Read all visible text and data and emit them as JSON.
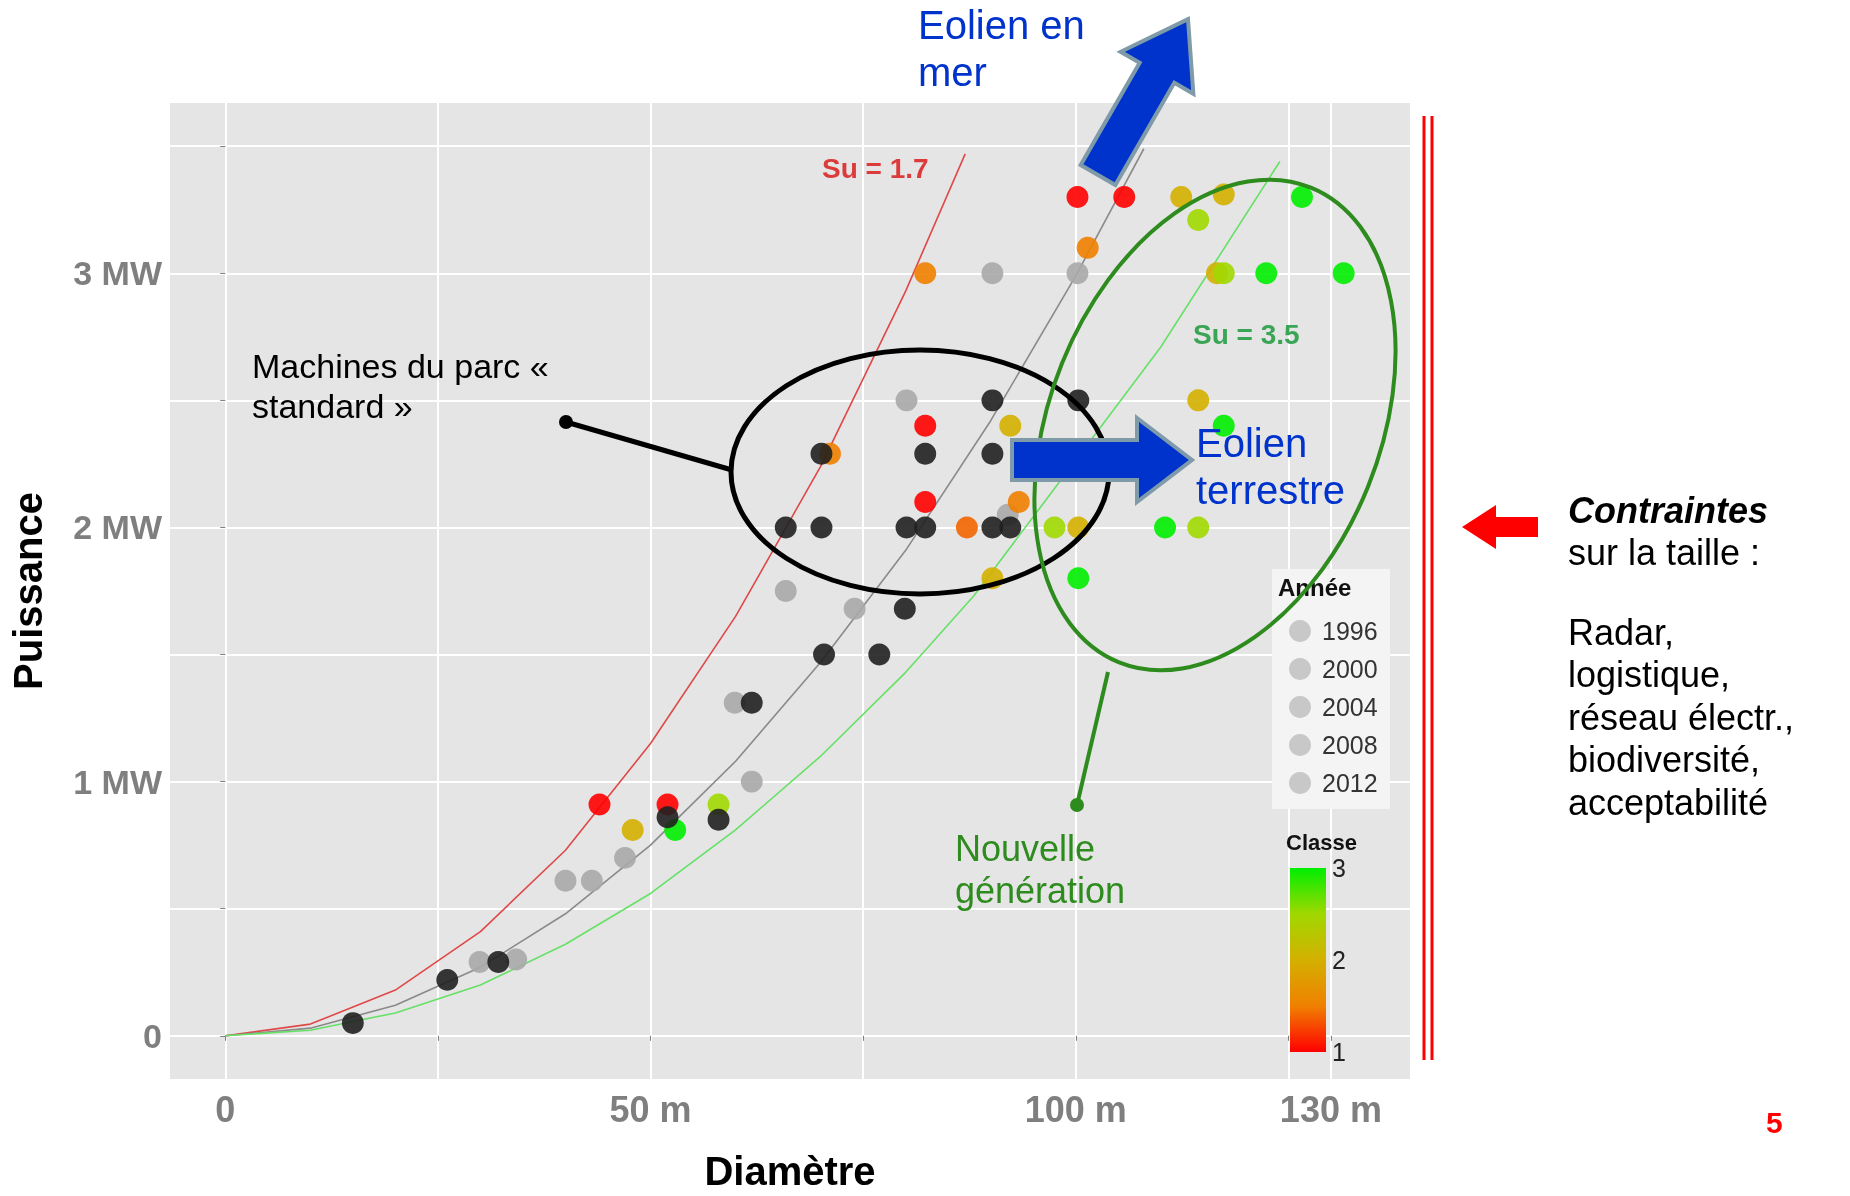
{
  "chart_data": {
    "type": "bubble",
    "xlabel": "Diamètre",
    "ylabel": "Puissance",
    "legend_title": "Année",
    "size_legend": [
      1996,
      2000,
      2004,
      2008,
      2012
    ],
    "xlim": [
      -6.5,
      139.3
    ],
    "ylim": [
      -0.17,
      3.67
    ],
    "xticks": [
      0,
      {
        "value": 25,
        "label": null
      },
      {
        "value": 50,
        "label": "50 m"
      },
      {
        "value": 75,
        "label": null
      },
      {
        "value": 100,
        "label": "100 m"
      },
      {
        "value": 125,
        "label": null
      },
      {
        "value": 130,
        "label": "130 m"
      }
    ],
    "yticks": [
      0,
      {
        "value": 0.5,
        "label": null
      },
      {
        "value": 1,
        "label": "1 MW"
      },
      {
        "value": 1.5,
        "label": null
      },
      {
        "value": 2,
        "label": "2 MW"
      },
      {
        "value": 2.5,
        "label": null
      },
      {
        "value": 3,
        "label": "3 MW"
      },
      {
        "value": 3.5,
        "label": null
      }
    ],
    "grid": true,
    "annotations": [
      "Eolien en mer",
      "Machines du parc « standard »",
      "Eolien terrestre",
      "Nouvelle génération",
      "Contraintes sur la taille :",
      "Radar, logistique, réseau électr., biodiversité, acceptabilité",
      "5",
      "Su = 1.7",
      "Su = 3.5",
      "Classe",
      "3",
      "2",
      "1"
    ],
    "series": [
      {
        "type": "line",
        "color": "#e04848",
        "x": [
          0,
          10,
          20,
          30,
          40,
          50,
          60,
          70,
          80,
          87
        ],
        "values": [
          0,
          0.046,
          0.18,
          0.41,
          0.73,
          1.15,
          1.65,
          2.24,
          2.93,
          3.47
        ]
      },
      {
        "type": "line",
        "color": "#8a8a8a",
        "x": [
          0,
          10,
          20,
          30,
          40,
          50,
          60,
          70,
          80,
          90,
          100,
          108
        ],
        "values": [
          0,
          0.03,
          0.12,
          0.27,
          0.48,
          0.75,
          1.08,
          1.47,
          1.91,
          2.42,
          2.99,
          3.49
        ]
      },
      {
        "type": "line",
        "color": "#66e066",
        "x": [
          0,
          10,
          20,
          30,
          40,
          50,
          60,
          70,
          80,
          88,
          110,
          124
        ],
        "values": [
          0,
          0.022,
          0.09,
          0.2,
          0.36,
          0.56,
          0.81,
          1.1,
          1.43,
          1.73,
          2.71,
          3.44
        ]
      },
      {
        "color": "#a8a8a8",
        "x": [
          90.2,
          100.2,
          80.1,
          92.0,
          65.9,
          74.0,
          59.9,
          61.9,
          47.0,
          40.0,
          43.1,
          29.9,
          34.2
        ],
        "values": [
          3.0,
          3.0,
          2.5,
          2.05,
          1.75,
          1.68,
          1.31,
          1.0,
          0.7,
          0.61,
          0.61,
          0.29,
          0.3
        ],
        "sizes": [
          2004,
          2004,
          2004,
          2004,
          2004,
          2004,
          2004,
          2004,
          2000,
          2000,
          1996,
          2004,
          2004
        ]
      },
      {
        "x": [
          100.2,
          105.7,
          112.4,
          117.4,
          114.4,
          126.6,
          101.4,
          82.3,
          116.6,
          117.4,
          122.4,
          131.5,
          114.4,
          82.3,
          92.3,
          117.4,
          71.1,
          82.3,
          93.3,
          87.2,
          97.5,
          100.3,
          110.5,
          114.4,
          90.2,
          100.3,
          44.0,
          52.0,
          58.0,
          47.9,
          52.9
        ],
        "values": [
          3.3,
          3.3,
          3.3,
          3.31,
          3.21,
          3.3,
          3.1,
          3.0,
          3.0,
          3.0,
          3.0,
          3.0,
          2.5,
          2.4,
          2.4,
          2.4,
          2.29,
          2.1,
          2.1,
          2.0,
          2.0,
          2.0,
          2.0,
          2.0,
          1.8,
          1.8,
          0.91,
          0.91,
          0.91,
          0.81,
          0.81
        ],
        "colors": [
          "#ff0000",
          "#ff0000",
          "#d4b000",
          "#d4b000",
          "#a0d800",
          "#00ee00",
          "#f08000",
          "#f08000",
          "#d4b000",
          "#a0d800",
          "#00ee00",
          "#00ee00",
          "#d4b000",
          "#ff0000",
          "#d4b000",
          "#00ee00",
          "#f08000",
          "#ff0000",
          "#f08000",
          "#f36600",
          "#a0d800",
          "#d4b000",
          "#00ee00",
          "#a0d800",
          "#d4b000",
          "#00ee00",
          "#ff0000",
          "#ff0000",
          "#a0d800",
          "#d4b000",
          "#00ee00"
        ],
        "sizes": [
          2012,
          2012,
          2012,
          2012,
          2012,
          2012,
          2012,
          2012,
          2012,
          2012,
          2012,
          2012,
          2012,
          2012,
          2012,
          2012,
          2012,
          2012,
          2012,
          2012,
          2012,
          2012,
          2012,
          2012,
          2012,
          2012,
          2012,
          2012,
          2012,
          2012,
          2012
        ]
      },
      {
        "color": "#202020",
        "x": [
          65.9,
          70.1,
          82.3,
          90.2,
          90.2,
          100.3,
          70.1,
          80.1,
          82.3,
          90.2,
          92.3,
          79.9,
          70.4,
          76.9,
          61.9,
          58.0,
          52.0,
          32.1,
          26.1,
          15.0
        ],
        "values": [
          2.0,
          2.29,
          2.29,
          2.29,
          2.5,
          2.5,
          2.0,
          2.0,
          2.0,
          2.0,
          2.0,
          1.68,
          1.5,
          1.5,
          1.31,
          0.85,
          0.86,
          0.29,
          0.22,
          0.05
        ],
        "sizes": [
          2004,
          2008,
          2010,
          2004,
          2010,
          2010,
          2008,
          2010,
          2010,
          2010,
          2010,
          2004,
          2004,
          2004,
          2004,
          2004,
          2004,
          2008,
          2000,
          1996
        ]
      }
    ]
  }
}
